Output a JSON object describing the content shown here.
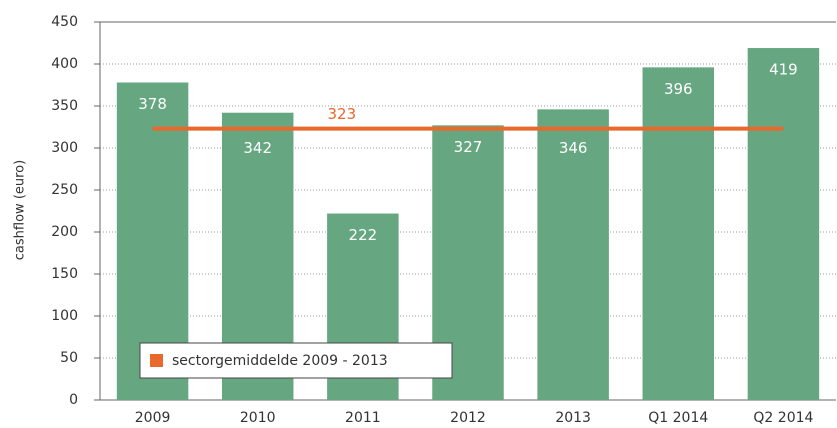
{
  "chart_data": {
    "type": "bar",
    "ylabel": "cashflow (euro)",
    "categories": [
      "2009",
      "2010",
      "2011",
      "2012",
      "2013",
      "Q1 2014",
      "Q2 2014"
    ],
    "values": [
      378,
      342,
      222,
      327,
      346,
      396,
      419
    ],
    "color": "#66a782",
    "ylim": [
      0,
      450
    ],
    "yticks": [
      0,
      50,
      100,
      150,
      200,
      250,
      300,
      350,
      400,
      450
    ],
    "grid": true,
    "reference_line": {
      "name": "sectorgemiddelde 2009 - 2013",
      "value": 323,
      "color": "#e8692b"
    },
    "legend": "bottom-left"
  }
}
